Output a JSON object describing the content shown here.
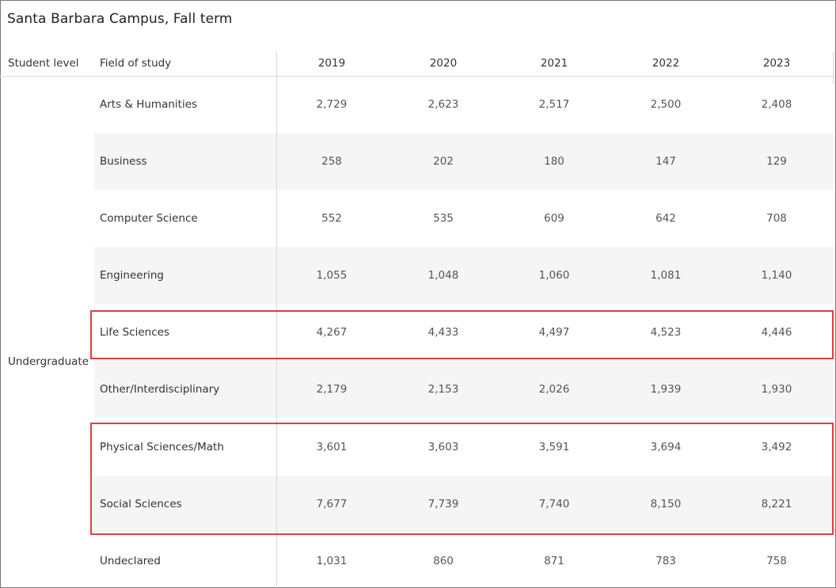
{
  "title": "Santa Barbara Campus, Fall term",
  "headers": {
    "student_level": "Student level",
    "field": "Field of study",
    "years": [
      "2019",
      "2020",
      "2021",
      "2022",
      "2023"
    ]
  },
  "student_level": "Undergraduate",
  "rows": [
    {
      "field": "Arts & Humanities",
      "values": [
        "2,729",
        "2,623",
        "2,517",
        "2,500",
        "2,408"
      ]
    },
    {
      "field": "Business",
      "values": [
        "258",
        "202",
        "180",
        "147",
        "129"
      ]
    },
    {
      "field": "Computer Science",
      "values": [
        "552",
        "535",
        "609",
        "642",
        "708"
      ]
    },
    {
      "field": "Engineering",
      "values": [
        "1,055",
        "1,048",
        "1,060",
        "1,081",
        "1,140"
      ]
    },
    {
      "field": "Life Sciences",
      "values": [
        "4,267",
        "4,433",
        "4,497",
        "4,523",
        "4,446"
      ]
    },
    {
      "field": "Other/Interdisciplinary",
      "values": [
        "2,179",
        "2,153",
        "2,026",
        "1,939",
        "1,930"
      ]
    },
    {
      "field": "Physical Sciences/Math",
      "values": [
        "3,601",
        "3,603",
        "3,591",
        "3,694",
        "3,492"
      ]
    },
    {
      "field": "Social Sciences",
      "values": [
        "7,677",
        "7,739",
        "7,740",
        "8,150",
        "8,221"
      ]
    },
    {
      "field": "Undeclared",
      "values": [
        "1,031",
        "860",
        "871",
        "783",
        "758"
      ]
    }
  ],
  "highlight_color": "#e0403a"
}
